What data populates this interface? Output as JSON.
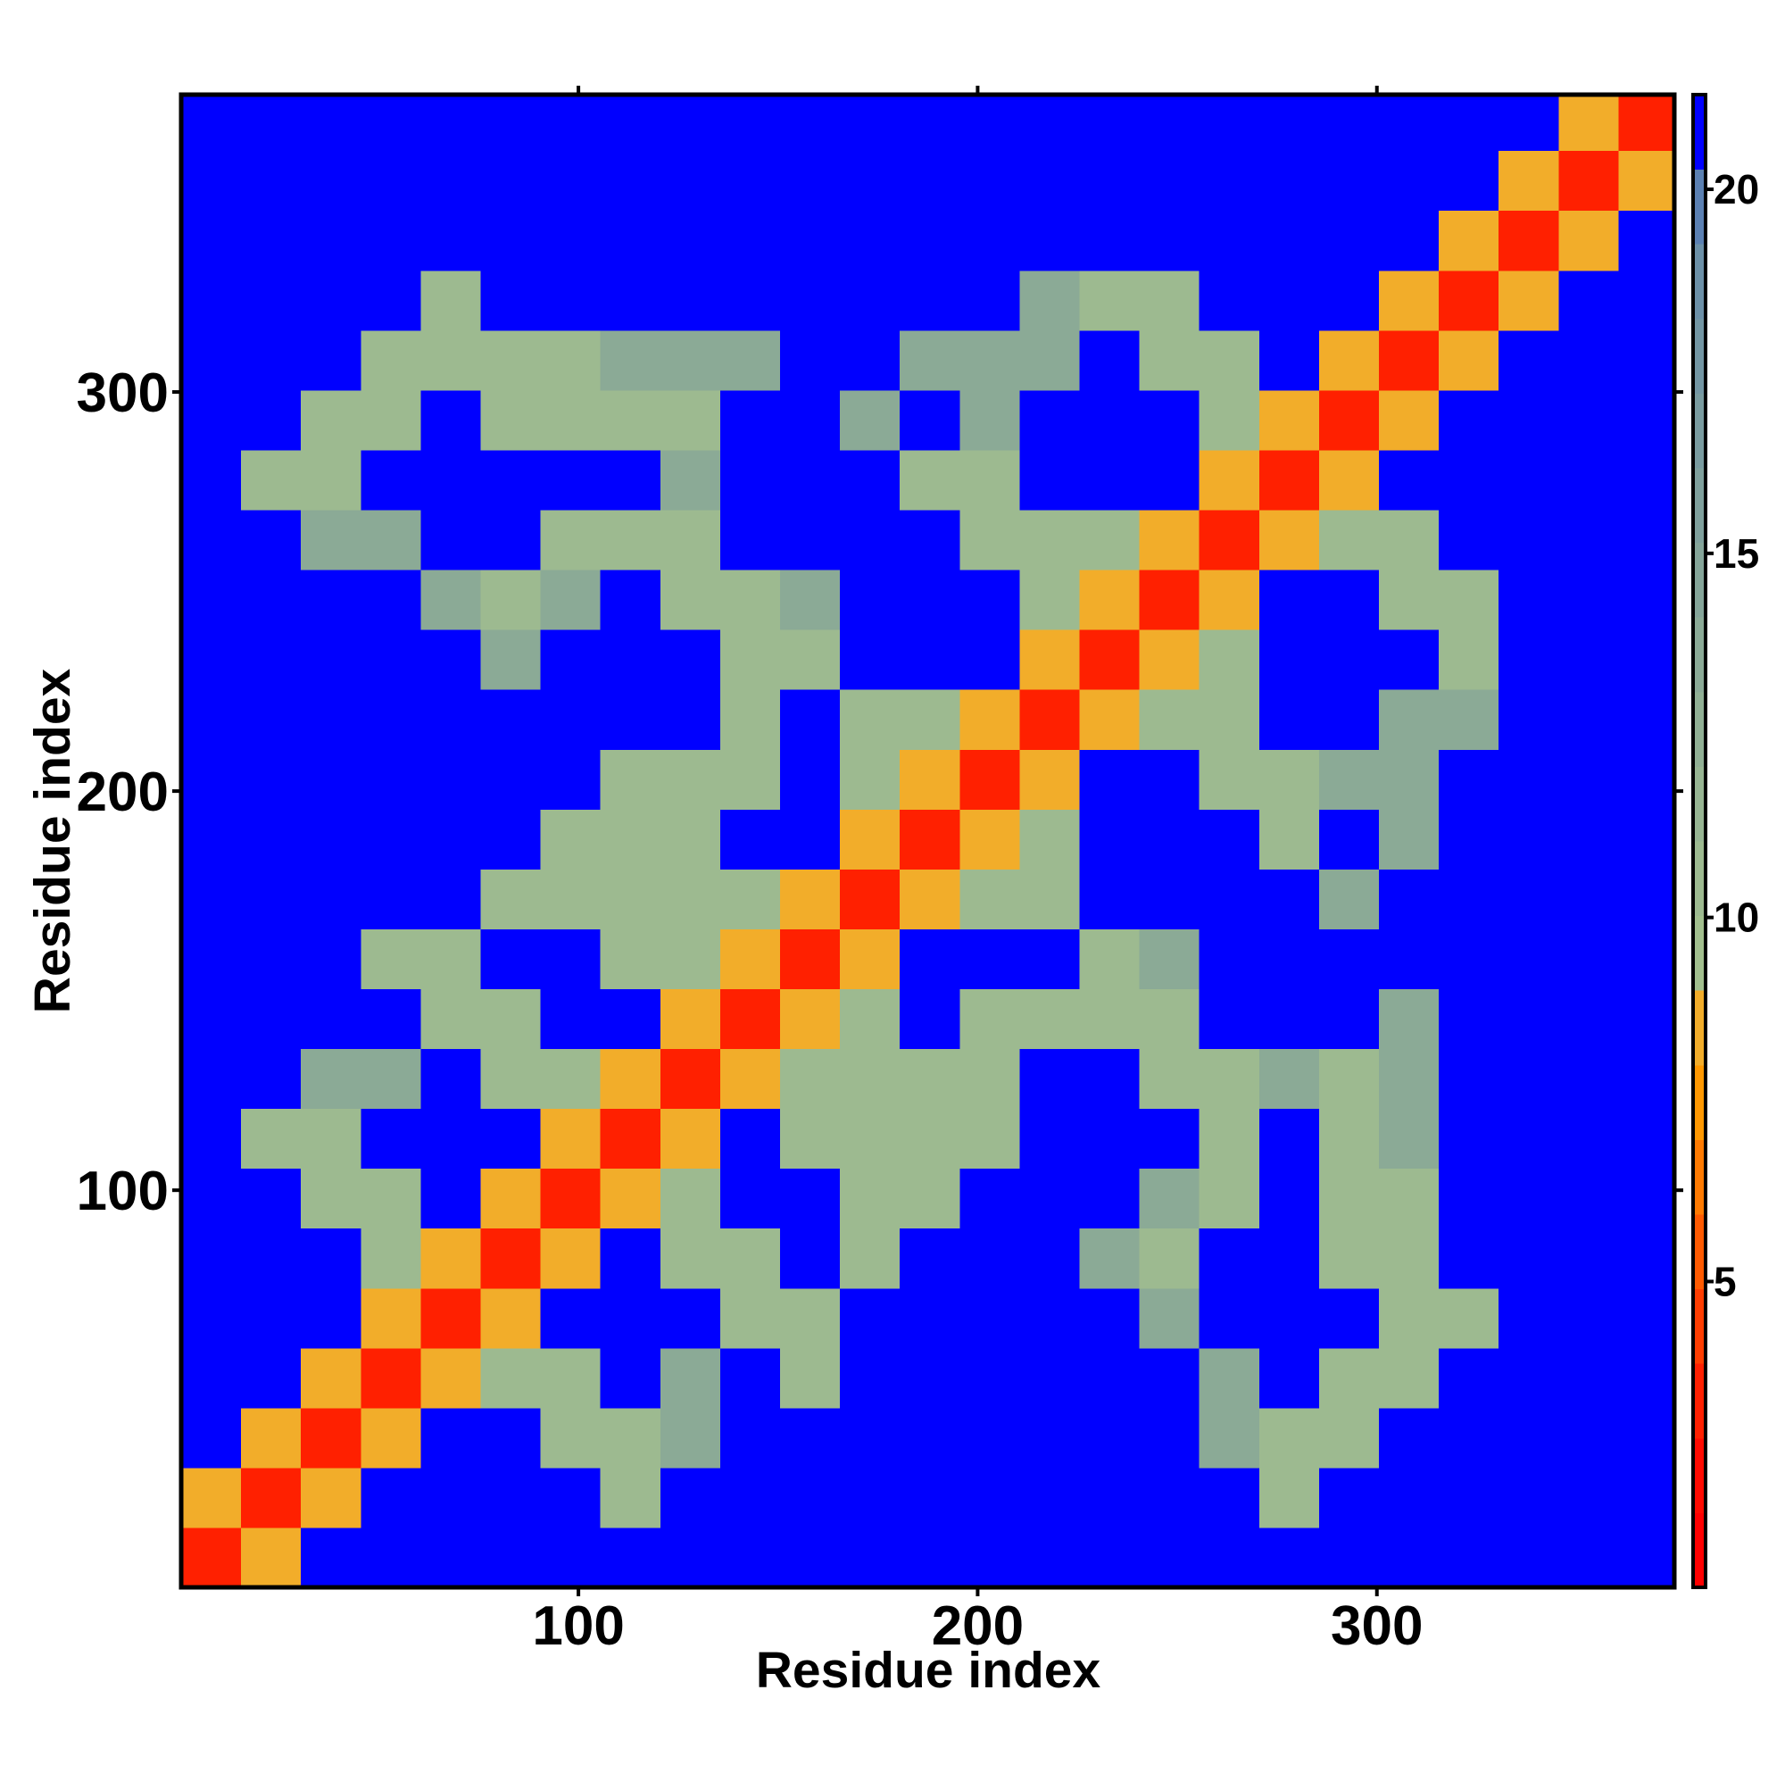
{
  "chart_data": {
    "type": "heatmap",
    "x_label": "Residue index",
    "y_label": "Residue index",
    "x": [
      8,
      23,
      38,
      53,
      68,
      83,
      98,
      113,
      128,
      143,
      158,
      173,
      188,
      203,
      218,
      233,
      248,
      263,
      278,
      293,
      308,
      323,
      338,
      353,
      368
    ],
    "y": [
      8,
      23,
      38,
      53,
      68,
      83,
      98,
      113,
      128,
      143,
      158,
      173,
      188,
      203,
      218,
      233,
      248,
      263,
      278,
      293,
      308,
      323,
      338,
      353,
      368
    ],
    "z": [
      [
        3,
        9,
        21,
        21,
        21,
        21,
        21,
        21,
        21,
        21,
        21,
        21,
        21,
        21,
        21,
        21,
        21,
        21,
        21,
        21,
        21,
        21,
        21,
        21,
        21
      ],
      [
        9,
        3,
        9,
        21,
        21,
        21,
        21,
        11,
        21,
        21,
        21,
        21,
        21,
        21,
        21,
        21,
        21,
        21,
        11,
        21,
        21,
        21,
        21,
        21,
        21
      ],
      [
        21,
        9,
        3,
        9,
        21,
        21,
        11,
        11,
        14,
        21,
        21,
        21,
        21,
        21,
        21,
        21,
        21,
        14,
        11,
        11,
        21,
        21,
        21,
        21,
        21
      ],
      [
        21,
        21,
        9,
        3,
        9,
        11,
        11,
        21,
        14,
        21,
        11,
        21,
        21,
        21,
        21,
        21,
        21,
        14,
        21,
        11,
        11,
        21,
        21,
        21,
        21
      ],
      [
        21,
        21,
        21,
        9,
        3,
        9,
        21,
        21,
        21,
        11,
        11,
        21,
        21,
        21,
        21,
        21,
        14,
        21,
        21,
        21,
        11,
        11,
        21,
        21,
        21
      ],
      [
        21,
        21,
        21,
        11,
        9,
        3,
        9,
        21,
        11,
        11,
        21,
        11,
        21,
        21,
        21,
        14,
        11,
        21,
        21,
        11,
        11,
        21,
        21,
        21,
        21
      ],
      [
        21,
        21,
        11,
        11,
        21,
        9,
        3,
        9,
        11,
        21,
        21,
        11,
        11,
        21,
        21,
        21,
        14,
        11,
        21,
        11,
        11,
        21,
        21,
        21,
        21
      ],
      [
        21,
        11,
        11,
        21,
        21,
        21,
        9,
        3,
        9,
        21,
        11,
        11,
        11,
        11,
        21,
        21,
        21,
        11,
        21,
        11,
        14,
        21,
        21,
        21,
        21
      ],
      [
        21,
        21,
        14,
        14,
        21,
        11,
        11,
        9,
        3,
        9,
        11,
        11,
        11,
        11,
        21,
        21,
        11,
        11,
        14,
        11,
        14,
        21,
        21,
        21,
        21
      ],
      [
        21,
        21,
        21,
        21,
        11,
        11,
        21,
        21,
        9,
        3,
        9,
        11,
        21,
        11,
        11,
        11,
        11,
        21,
        21,
        21,
        14,
        21,
        21,
        21,
        21
      ],
      [
        21,
        21,
        21,
        11,
        11,
        21,
        21,
        11,
        11,
        9,
        3,
        9,
        21,
        21,
        21,
        11,
        14,
        21,
        21,
        21,
        21,
        21,
        21,
        21,
        21
      ],
      [
        21,
        21,
        21,
        21,
        21,
        11,
        11,
        11,
        11,
        11,
        9,
        3,
        9,
        11,
        11,
        21,
        21,
        21,
        21,
        14,
        21,
        21,
        21,
        21,
        21
      ],
      [
        21,
        21,
        21,
        21,
        21,
        21,
        11,
        11,
        11,
        21,
        21,
        9,
        3,
        9,
        11,
        21,
        21,
        21,
        11,
        21,
        14,
        21,
        21,
        21,
        21
      ],
      [
        21,
        21,
        21,
        21,
        21,
        21,
        21,
        11,
        11,
        11,
        21,
        11,
        9,
        3,
        9,
        21,
        21,
        11,
        11,
        14,
        14,
        21,
        21,
        21,
        21
      ],
      [
        21,
        21,
        21,
        21,
        21,
        21,
        21,
        21,
        21,
        11,
        21,
        11,
        11,
        9,
        3,
        9,
        11,
        11,
        21,
        21,
        14,
        14,
        21,
        21,
        21
      ],
      [
        21,
        21,
        21,
        21,
        21,
        14,
        21,
        21,
        21,
        11,
        11,
        21,
        21,
        21,
        9,
        3,
        9,
        11,
        21,
        21,
        21,
        11,
        21,
        21,
        21
      ],
      [
        21,
        21,
        21,
        21,
        14,
        11,
        14,
        21,
        11,
        11,
        14,
        21,
        21,
        21,
        11,
        9,
        3,
        9,
        21,
        21,
        11,
        11,
        21,
        21,
        21
      ],
      [
        21,
        21,
        14,
        14,
        21,
        21,
        11,
        11,
        11,
        21,
        21,
        21,
        21,
        11,
        11,
        11,
        9,
        3,
        9,
        11,
        11,
        21,
        21,
        21,
        21
      ],
      [
        21,
        11,
        11,
        21,
        21,
        21,
        21,
        21,
        14,
        21,
        21,
        21,
        11,
        11,
        21,
        21,
        21,
        9,
        3,
        9,
        21,
        21,
        21,
        21,
        21
      ],
      [
        21,
        21,
        11,
        11,
        21,
        11,
        11,
        11,
        11,
        21,
        21,
        14,
        21,
        14,
        21,
        21,
        21,
        11,
        9,
        3,
        9,
        21,
        21,
        21,
        21
      ],
      [
        21,
        21,
        21,
        11,
        11,
        11,
        11,
        14,
        14,
        14,
        21,
        21,
        14,
        14,
        14,
        21,
        11,
        11,
        21,
        9,
        3,
        9,
        21,
        21,
        21
      ],
      [
        21,
        21,
        21,
        21,
        11,
        21,
        21,
        21,
        21,
        21,
        21,
        21,
        21,
        21,
        14,
        11,
        11,
        21,
        21,
        21,
        9,
        3,
        9,
        21,
        21
      ],
      [
        21,
        21,
        21,
        21,
        21,
        21,
        21,
        21,
        21,
        21,
        21,
        21,
        21,
        21,
        21,
        21,
        21,
        21,
        21,
        21,
        21,
        9,
        3,
        9,
        21
      ],
      [
        21,
        21,
        21,
        21,
        21,
        21,
        21,
        21,
        21,
        21,
        21,
        21,
        21,
        21,
        21,
        21,
        21,
        21,
        21,
        21,
        21,
        21,
        9,
        3,
        9
      ],
      [
        21,
        21,
        21,
        21,
        21,
        21,
        21,
        21,
        21,
        21,
        21,
        21,
        21,
        21,
        21,
        21,
        21,
        21,
        21,
        21,
        21,
        21,
        21,
        9,
        3
      ]
    ],
    "xlim": [
      0.5,
      374.5
    ],
    "ylim": [
      0.5,
      374.5
    ],
    "xticks": [
      100,
      200,
      300
    ],
    "yticks": [
      100,
      200,
      300
    ],
    "zlim": [
      0.8,
      21.3
    ],
    "zticks": [
      5,
      10,
      15,
      20
    ],
    "colorscale": [
      "#ff0000",
      "#ff0a00",
      "#ff2000",
      "#ff3d00",
      "#ff5a00",
      "#ff7a00",
      "#ff9800",
      "#f2ad2a",
      "#a2bf8e",
      "#9dba90",
      "#97b592",
      "#91b094",
      "#8baa96",
      "#85a599",
      "#7fa09c",
      "#799b9f",
      "#7396a3",
      "#6c90a7",
      "#5b80b2",
      "#0000ff"
    ]
  }
}
